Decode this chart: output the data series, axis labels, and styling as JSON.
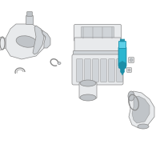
{
  "background_color": "#ffffff",
  "line_color": "#888888",
  "line_color_dark": "#555555",
  "highlight_color": "#29b6d0",
  "highlight_dark": "#1a8fa8",
  "highlight_light": "#5dd0e8",
  "part_fill": "#e8eaec",
  "part_fill2": "#d0d4d8",
  "part_fill3": "#c0c4c8",
  "lw_main": 0.5,
  "lw_thin": 0.3
}
